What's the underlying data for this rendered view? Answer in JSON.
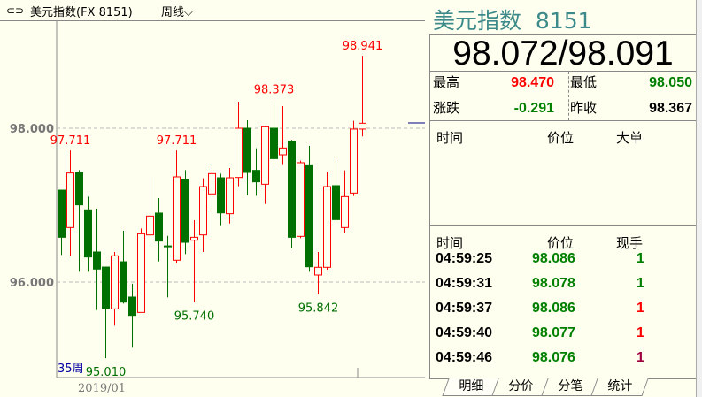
{
  "header": {
    "link_icon": "chain-link-icon",
    "title": "美元指数(FX 8151)",
    "period": "周线",
    "period_icon": "chevron-down-icon"
  },
  "chart_data": {
    "type": "candlestick",
    "y_ticks": [
      {
        "value": 98.0,
        "label": "98.000"
      },
      {
        "value": 96.0,
        "label": "96.000"
      }
    ],
    "x_label": "2019/01",
    "count_label": "35周",
    "grid": "dashed horizontal",
    "colors": {
      "up": "#ff0000",
      "down": "#007000"
    },
    "candles": [
      {
        "o": 97.195,
        "c": 96.582,
        "h": 97.195,
        "l": 96.352
      },
      {
        "o": 96.709,
        "c": 97.418,
        "h": 97.711,
        "l": 96.341
      },
      {
        "o": 97.425,
        "c": 97.004,
        "h": 97.456,
        "l": 96.134
      },
      {
        "o": 96.939,
        "c": 96.326,
        "h": 97.111,
        "l": 96.134
      },
      {
        "o": 96.391,
        "c": 96.169,
        "h": 96.954,
        "l": 95.636
      },
      {
        "o": 96.195,
        "c": 95.659,
        "h": 96.195,
        "l": 95.01
      },
      {
        "o": 95.651,
        "c": 96.341,
        "h": 96.391,
        "l": 95.433
      },
      {
        "o": 96.264,
        "c": 95.739,
        "h": 96.667,
        "l": 95.72
      },
      {
        "o": 95.805,
        "c": 95.567,
        "h": 95.977,
        "l": 95.146
      },
      {
        "o": 95.605,
        "c": 96.628,
        "h": 96.697,
        "l": 95.605
      },
      {
        "o": 96.613,
        "c": 96.858,
        "h": 97.368,
        "l": 96.6
      },
      {
        "o": 96.897,
        "c": 96.533,
        "h": 97.092,
        "l": 96.268
      },
      {
        "o": 96.47,
        "c": 96.46,
        "h": 96.6,
        "l": 95.8
      },
      {
        "o": 96.284,
        "c": 97.368,
        "h": 97.711,
        "l": 96.245
      },
      {
        "o": 97.333,
        "c": 96.517,
        "h": 97.456,
        "l": 96.364
      },
      {
        "o": 96.544,
        "c": 96.582,
        "h": 96.805,
        "l": 95.74
      },
      {
        "o": 96.613,
        "c": 97.241,
        "h": 97.349,
        "l": 96.391
      },
      {
        "o": 97.146,
        "c": 97.41,
        "h": 97.517,
        "l": 96.946
      },
      {
        "o": 97.356,
        "c": 96.9,
        "h": 97.41,
        "l": 96.728
      },
      {
        "o": 96.889,
        "c": 97.356,
        "h": 97.483,
        "l": 96.762
      },
      {
        "o": 97.36,
        "c": 98.0,
        "h": 98.345,
        "l": 97.245
      },
      {
        "o": 98.0,
        "c": 97.425,
        "h": 98.103,
        "l": 97.13
      },
      {
        "o": 97.452,
        "c": 97.303,
        "h": 97.74,
        "l": 97.12
      },
      {
        "o": 97.272,
        "c": 98.019,
        "h": 98.027,
        "l": 97.015
      },
      {
        "o": 98.0,
        "c": 97.605,
        "h": 98.373,
        "l": 97.533
      },
      {
        "o": 97.655,
        "c": 97.743,
        "h": 98.287,
        "l": 97.521
      },
      {
        "o": 97.828,
        "c": 96.582,
        "h": 97.847,
        "l": 96.44
      },
      {
        "o": 96.594,
        "c": 97.552,
        "h": 97.579,
        "l": 96.571
      },
      {
        "o": 97.513,
        "c": 96.199,
        "h": 97.77,
        "l": 96.134
      },
      {
        "o": 96.092,
        "c": 96.192,
        "h": 96.391,
        "l": 95.842
      },
      {
        "o": 96.192,
        "c": 97.241,
        "h": 97.437,
        "l": 96.161
      },
      {
        "o": 97.253,
        "c": 96.812,
        "h": 97.586,
        "l": 96.785
      },
      {
        "o": 96.709,
        "c": 97.111,
        "h": 97.452,
        "l": 96.64
      },
      {
        "o": 97.157,
        "c": 97.989,
        "h": 98.096,
        "l": 97.119
      },
      {
        "o": 97.989,
        "c": 98.065,
        "h": 98.941,
        "l": 97.893
      }
    ],
    "annotations": [
      {
        "index": 1,
        "label": "97.711",
        "kind": "high"
      },
      {
        "index": 13,
        "label": "97.711",
        "kind": "high"
      },
      {
        "index": 24,
        "label": "98.373",
        "kind": "high"
      },
      {
        "index": 34,
        "label": "98.941",
        "kind": "high"
      },
      {
        "index": 5,
        "label": "95.010",
        "kind": "low"
      },
      {
        "index": 15,
        "label": "95.740",
        "kind": "low"
      },
      {
        "index": 29,
        "label": "95.842",
        "kind": "low"
      }
    ]
  },
  "quote": {
    "name": "美元指数",
    "code": "8151",
    "bid_ask": "98.072/98.091",
    "high_label": "最高",
    "high": "98.470",
    "low_label": "最低",
    "low": "98.050",
    "change_label": "涨跌",
    "change": "-0.291",
    "prev_close_label": "昨收",
    "prev_close": "98.367"
  },
  "big_orders": {
    "headers": [
      "时间",
      "价位",
      "大单"
    ]
  },
  "ticks": {
    "headers": [
      "时间",
      "价位",
      "现手"
    ],
    "rows": [
      {
        "time": "04:59:25",
        "price": "98.086",
        "vol": "1",
        "vol_color": "#008000"
      },
      {
        "time": "04:59:31",
        "price": "98.078",
        "vol": "1",
        "vol_color": "#008000"
      },
      {
        "time": "04:59:37",
        "price": "98.086",
        "vol": "1",
        "vol_color": "#ff0000"
      },
      {
        "time": "04:59:40",
        "price": "98.077",
        "vol": "1",
        "vol_color": "#ff0000"
      },
      {
        "time": "04:59:46",
        "price": "98.076",
        "vol": "1",
        "vol_color": "#a00040"
      }
    ]
  },
  "tabs": [
    "明细",
    "分价",
    "分笔",
    "统计"
  ],
  "colors": {
    "up": "#ff0000",
    "down": "#008000",
    "title": "#3d8a8a"
  }
}
